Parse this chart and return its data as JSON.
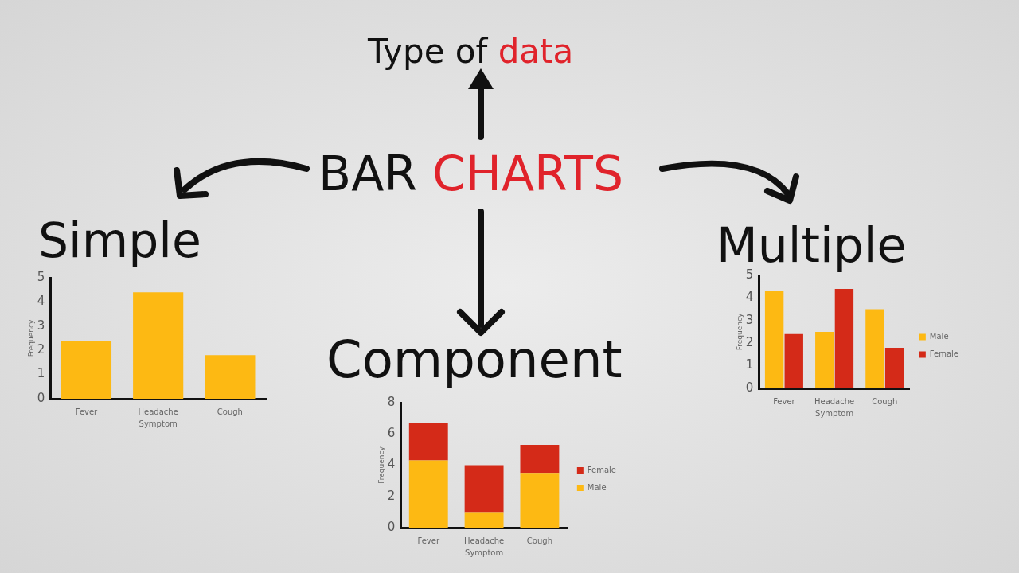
{
  "chart_data": [
    {
      "type": "other",
      "title": "BAR CHARTS",
      "annotations": [
        "Type of data"
      ]
    },
    {
      "type": "bar",
      "title": "Simple",
      "xlabel": "Symptom",
      "ylabel": "Frequency",
      "categories": [
        "Fever",
        "Headache",
        "Cough"
      ],
      "values": [
        2.4,
        4.4,
        1.8
      ],
      "color": "#fdb913",
      "ylim": [
        0,
        5
      ],
      "yticks": [
        0,
        1,
        2,
        3,
        4,
        5
      ],
      "legend": false
    },
    {
      "type": "bar",
      "title": "Multiple",
      "xlabel": "Symptom",
      "ylabel": "Frequency",
      "categories": [
        "Fever",
        "Headache",
        "Cough"
      ],
      "series": [
        {
          "name": "Male",
          "color": "#fdb913",
          "values": [
            4.3,
            2.5,
            3.5
          ]
        },
        {
          "name": "Female",
          "color": "#d42a18",
          "values": [
            2.4,
            4.4,
            1.8
          ]
        }
      ],
      "ylim": [
        0,
        5
      ],
      "yticks": [
        0,
        1,
        2,
        3,
        4,
        5
      ],
      "legend": "right"
    },
    {
      "type": "bar",
      "title": "Component",
      "xlabel": "Symptom",
      "ylabel": "Frequency",
      "categories": [
        "Fever",
        "Headache",
        "Cough"
      ],
      "stacked": true,
      "series": [
        {
          "name": "Male",
          "color": "#fdb913",
          "values": [
            4.3,
            1.0,
            3.5
          ]
        },
        {
          "name": "Female",
          "color": "#d42a18",
          "values": [
            2.4,
            3.0,
            1.8
          ]
        }
      ],
      "ylim": [
        0,
        8
      ],
      "yticks": [
        0,
        2,
        4,
        6,
        8
      ],
      "legend": "right"
    }
  ]
}
